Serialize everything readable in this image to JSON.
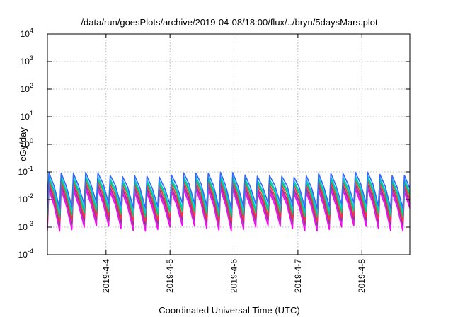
{
  "chart_data": {
    "type": "line",
    "title": "/data/run/goesPlots/archive/2019-04-08/18:00/flux/../bryn/5daysMars.plot",
    "xlabel": "Coordinated Universal Time (UTC)",
    "ylabel": "cGy/day",
    "yscale": "log",
    "ylim": [
      0.0001,
      10000
    ],
    "y_ticks": [
      {
        "base": "10",
        "exp": "-4",
        "value": 0.0001
      },
      {
        "base": "10",
        "exp": "-3",
        "value": 0.001
      },
      {
        "base": "10",
        "exp": "-2",
        "value": 0.01
      },
      {
        "base": "10",
        "exp": "-1",
        "value": 0.1
      },
      {
        "base": "10",
        "exp": "0",
        "value": 1
      },
      {
        "base": "10",
        "exp": "1",
        "value": 10
      },
      {
        "base": "10",
        "exp": "2",
        "value": 100
      },
      {
        "base": "10",
        "exp": "3",
        "value": 1000
      },
      {
        "base": "10",
        "exp": "4",
        "value": 10000
      }
    ],
    "xlim": [
      "2019-04-03T02:00",
      "2019-04-08T18:00"
    ],
    "x_ticks": [
      {
        "label": "2019-4-4",
        "value": "2019-04-04T00:00"
      },
      {
        "label": "2019-4-5",
        "value": "2019-04-05T00:00"
      },
      {
        "label": "2019-4-6",
        "value": "2019-04-06T00:00"
      },
      {
        "label": "2019-4-7",
        "value": "2019-04-07T00:00"
      },
      {
        "label": "2019-4-8",
        "value": "2019-04-08T00:00"
      }
    ],
    "grid": true,
    "cycle_hours": 4.6,
    "series": [
      {
        "color": "#ff00ff",
        "peak": 0.02,
        "trough": 0.0009
      },
      {
        "color": "#cc33cc",
        "peak": 0.025,
        "trough": 0.0012
      },
      {
        "color": "#993399",
        "peak": 0.03,
        "trough": 0.0015
      },
      {
        "color": "#ff3333",
        "peak": 0.04,
        "trough": 0.002
      },
      {
        "color": "#00cc66",
        "peak": 0.05,
        "trough": 0.003
      },
      {
        "color": "#00cccc",
        "peak": 0.06,
        "trough": 0.004
      },
      {
        "color": "#3366ff",
        "peak": 0.08,
        "trough": 0.006
      }
    ]
  }
}
